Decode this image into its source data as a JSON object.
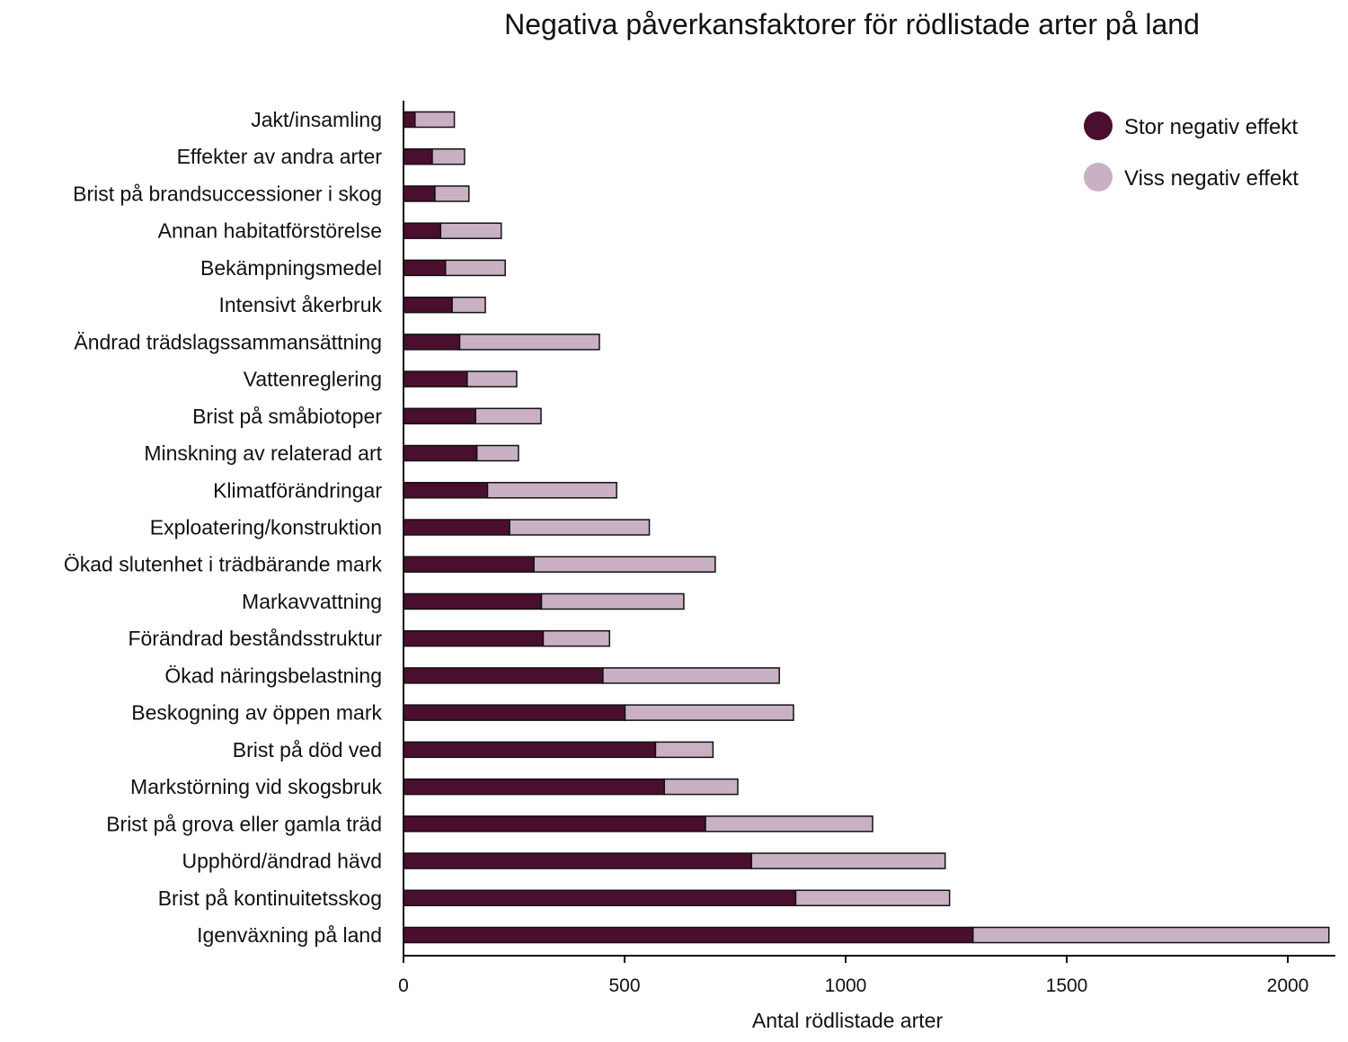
{
  "chart_data": {
    "type": "bar",
    "orientation": "horizontal",
    "stacked": true,
    "title": "Negativa påverkansfaktorer för rödlistade arter på land",
    "xlabel": "Antal rödlistade arter",
    "ylabel": "",
    "xlim": [
      0,
      2100
    ],
    "xticks": [
      0,
      500,
      1000,
      1500,
      2000
    ],
    "xtick_labels": [
      "0",
      "500",
      "1000",
      "1500",
      "2000"
    ],
    "grid": false,
    "legend_position": "top-right",
    "categories": [
      "Jakt/insamling",
      "Effekter av andra arter",
      "Brist på brandsuccessioner i skog",
      "Annan habitatförstörelse",
      "Bekämpningsmedel",
      "Intensivt åkerbruk",
      "Ändrad trädslagssammansättning",
      "Vattenreglering",
      "Brist på småbiotoper",
      "Minskning av relaterad art",
      "Klimatförändringar",
      "Exploatering/konstruktion",
      "Ökad slutenhet i trädbärande mark",
      "Markavvattning",
      "Förändrad beståndsstruktur",
      "Ökad näringsbelastning",
      "Beskogning av öppen mark",
      "Brist på död ved",
      "Markstörning vid skogsbruk",
      "Brist på grova eller gamla träd",
      "Upphörd/ändrad hävd",
      "Brist på kontinuitetsskog",
      "Igenväxning på land"
    ],
    "series": [
      {
        "name": "Stor negativ effekt",
        "color": "#4a0e2e",
        "values": [
          26,
          65,
          71,
          84,
          95,
          110,
          127,
          144,
          163,
          166,
          190,
          240,
          295,
          312,
          316,
          451,
          501,
          570,
          590,
          683,
          787,
          887,
          1288
        ]
      },
      {
        "name": "Viss negativ effekt",
        "color": "#c9b1c3",
        "values": [
          89,
          73,
          77,
          137,
          135,
          75,
          316,
          112,
          148,
          94,
          292,
          316,
          410,
          322,
          150,
          399,
          381,
          130,
          166,
          378,
          438,
          348,
          805
        ]
      }
    ]
  }
}
